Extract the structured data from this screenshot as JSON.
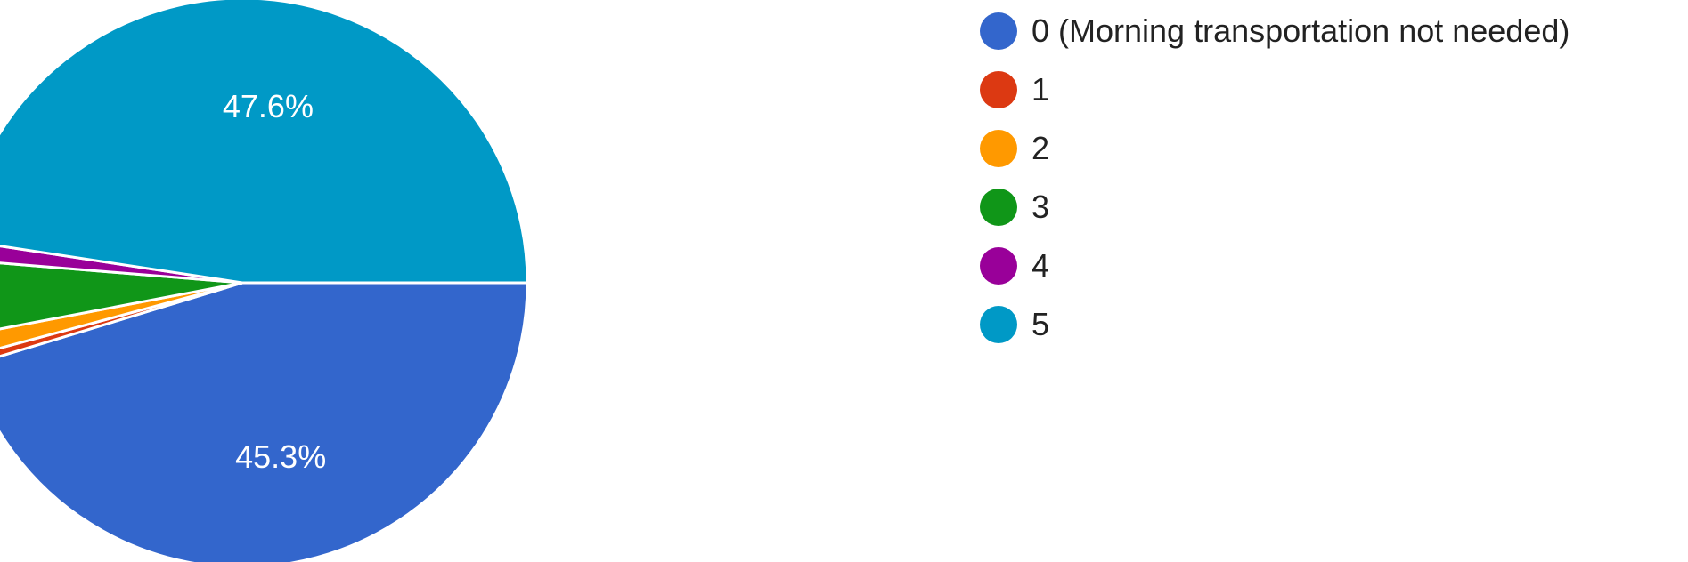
{
  "chart_data": {
    "type": "pie",
    "title": "",
    "legend_position": "right",
    "start_angle_deg": 90,
    "direction": "clockwise",
    "slices": [
      {
        "label": "0 (Morning transportation not needed)",
        "value": 45.3,
        "color": "#3366cc",
        "data_label": "45.3%"
      },
      {
        "label": "1",
        "value": 0.5,
        "color": "#dc3912",
        "data_label": ""
      },
      {
        "label": "2",
        "value": 1.2,
        "color": "#ff9900",
        "data_label": ""
      },
      {
        "label": "3",
        "value": 4.3,
        "color": "#109618",
        "data_label": ""
      },
      {
        "label": "4",
        "value": 1.1,
        "color": "#990099",
        "data_label": ""
      },
      {
        "label": "5",
        "value": 47.6,
        "color": "#0099c6",
        "data_label": "47.6%"
      }
    ]
  }
}
